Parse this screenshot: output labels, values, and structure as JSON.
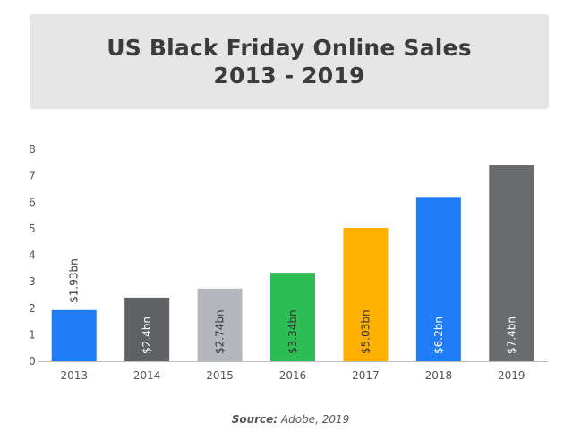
{
  "chart_data": {
    "type": "bar",
    "title_lines": [
      "US Black Friday Online Sales",
      "2013 - 2019"
    ],
    "categories": [
      "2013",
      "2014",
      "2015",
      "2016",
      "2017",
      "2018",
      "2019"
    ],
    "values": [
      1.93,
      2.4,
      2.74,
      3.34,
      5.03,
      6.2,
      7.4
    ],
    "data_labels": [
      "$1.93bn",
      "$2.4bn",
      "$2.74bn",
      "$3.34bn",
      "$5.03bn",
      "$6.2bn",
      "$7.4bn"
    ],
    "bar_colors": [
      "#1f7cf6",
      "#5f6164",
      "#b4b8bc",
      "#2ebd54",
      "#ffb000",
      "#1f7cf6",
      "#6a6b6d"
    ],
    "label_colors": [
      "#333333",
      "#ffffff",
      "#333333",
      "#333333",
      "#333333",
      "#ffffff",
      "#ffffff"
    ],
    "label_inside": [
      false,
      true,
      true,
      true,
      true,
      true,
      true
    ],
    "ylim": [
      0,
      8
    ],
    "y_ticks": [
      0,
      1,
      2,
      3,
      4,
      5,
      6,
      7,
      8
    ],
    "grid": false
  },
  "source": {
    "label": "Source:",
    "text": "Adobe, 2019"
  }
}
